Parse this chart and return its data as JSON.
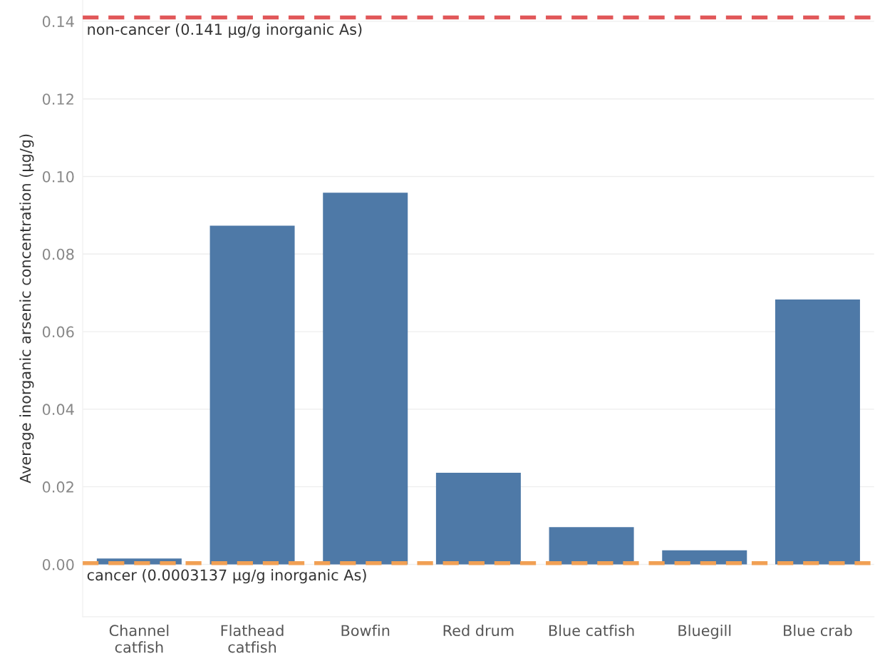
{
  "chart_data": {
    "type": "bar",
    "ylabel": "Average inorganic arsenic concentration (µg/g)",
    "categories": [
      "Channel\ncatfish",
      "Flathead\ncatfish",
      "Bowfin",
      "Red drum",
      "Blue catfish",
      "Bluegill",
      "Blue crab"
    ],
    "values": [
      0.0015,
      0.0873,
      0.0958,
      0.0236,
      0.0096,
      0.0036,
      0.0683
    ],
    "color": "#4e79a7",
    "ylim": [
      -0.0135,
      0.1455
    ],
    "yticks": [
      {
        "value": 0,
        "label": "0.00"
      },
      {
        "value": 0.02,
        "label": "0.02"
      },
      {
        "value": 0.04,
        "label": "0.04"
      },
      {
        "value": 0.06,
        "label": "0.06"
      },
      {
        "value": 0.08,
        "label": "0.08"
      },
      {
        "value": 0.1,
        "label": "0.10"
      },
      {
        "value": 0.12,
        "label": "0.12"
      },
      {
        "value": 0.14,
        "label": "0.14"
      }
    ],
    "grid": "y",
    "ref_lines": [
      {
        "axis": "y",
        "value": 0.141,
        "label": "non-cancer (0.141 µg/g inorganic As)",
        "color": "#e15759",
        "line_style": "dashed"
      },
      {
        "axis": "y",
        "value": 0.0003137,
        "label": "cancer (0.0003137 µg/g inorganic As)",
        "color": "#f1a054",
        "line_style": "dashed"
      }
    ]
  }
}
